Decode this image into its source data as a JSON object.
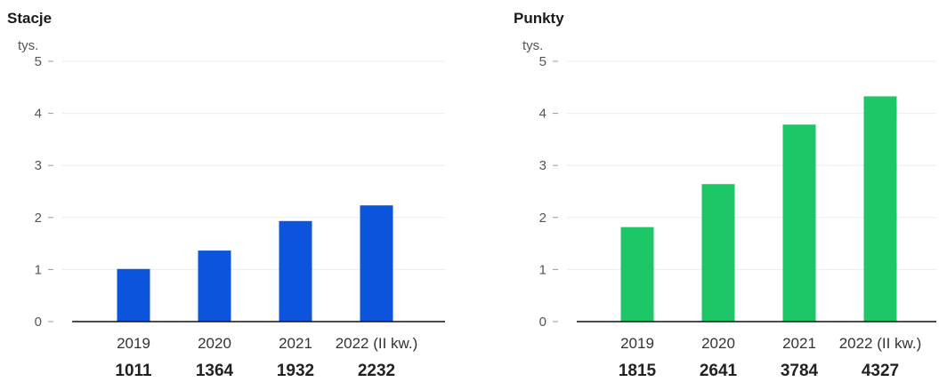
{
  "chart_data": [
    {
      "type": "bar",
      "title": "Stacje",
      "unit_label": "tys.",
      "categories": [
        "2019",
        "2020",
        "2021",
        "2022 (II kw.)"
      ],
      "values": [
        1011,
        1364,
        1932,
        2232
      ],
      "value_labels": [
        "1011",
        "1364",
        "1932",
        "2232"
      ],
      "yticks": [
        "0",
        "1",
        "2",
        "3",
        "4",
        "5"
      ],
      "ylim": [
        0,
        5000
      ],
      "grid": true,
      "color": "#0b54db"
    },
    {
      "type": "bar",
      "title": "Punkty",
      "unit_label": "tys.",
      "categories": [
        "2019",
        "2020",
        "2021",
        "2022 (II kw.)"
      ],
      "values": [
        1815,
        2641,
        3784,
        4327
      ],
      "value_labels": [
        "1815",
        "2641",
        "3784",
        "4327"
      ],
      "yticks": [
        "0",
        "1",
        "2",
        "3",
        "4",
        "5"
      ],
      "ylim": [
        0,
        5000
      ],
      "grid": true,
      "color": "#1dc666"
    }
  ]
}
